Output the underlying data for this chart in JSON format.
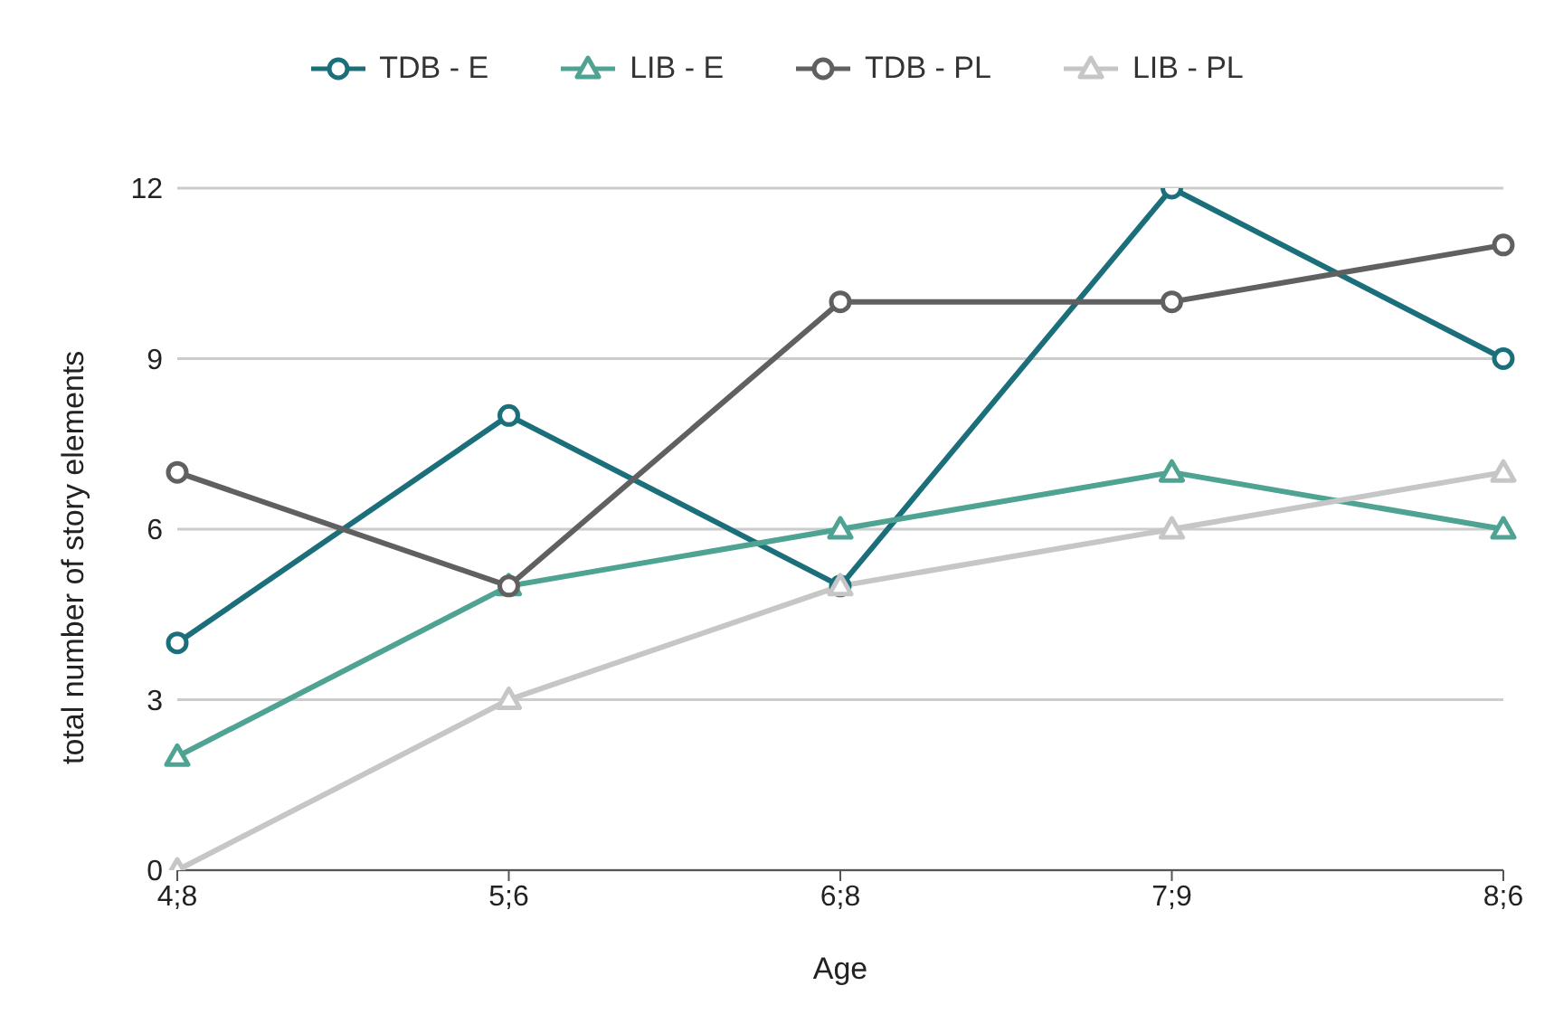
{
  "chart_data": {
    "type": "line",
    "xlabel": "Age",
    "ylabel": "total number of story elements",
    "categories": [
      "4;8",
      "5;6",
      "6;8",
      "7;9",
      "8;6"
    ],
    "ylim": [
      0,
      12
    ],
    "yticks": [
      0,
      3,
      6,
      9,
      12
    ],
    "grid": "y",
    "legend": "top",
    "series": [
      {
        "name": "TDB - E",
        "color": "#1b6f7b",
        "marker": "circle",
        "values": [
          4,
          8,
          5,
          12,
          9
        ]
      },
      {
        "name": "LIB - E",
        "color": "#4fa392",
        "marker": "triangle",
        "values": [
          2,
          5,
          6,
          7,
          6
        ]
      },
      {
        "name": "TDB - PL",
        "color": "#606060",
        "marker": "circle",
        "values": [
          7,
          5,
          10,
          10,
          11
        ]
      },
      {
        "name": "LIB - PL",
        "color": "#c6c6c6",
        "marker": "triangle",
        "values": [
          0,
          3,
          5,
          6,
          7
        ]
      }
    ]
  }
}
